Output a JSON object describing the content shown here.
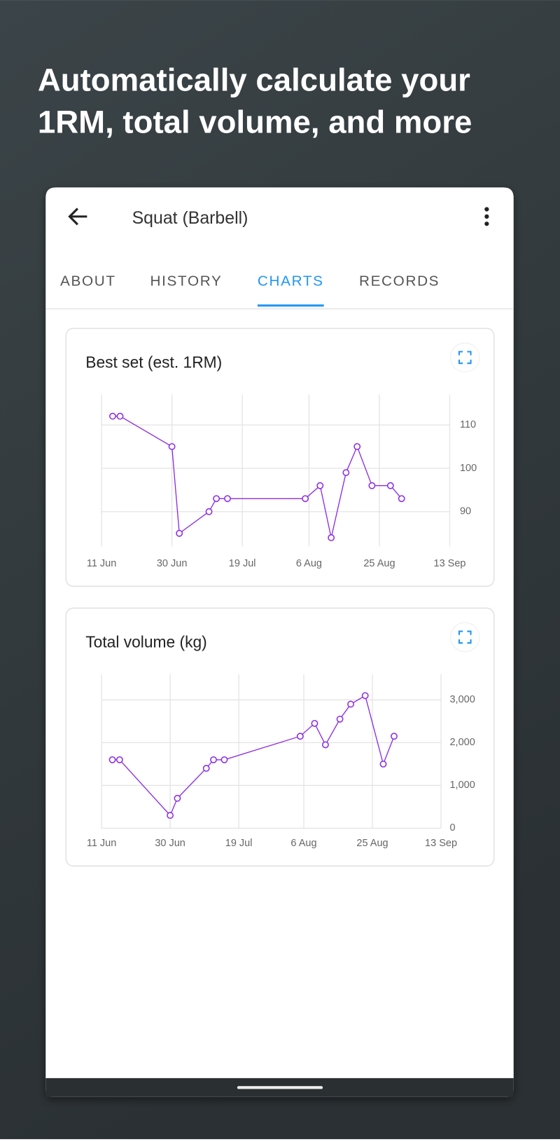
{
  "headline": [
    "Automatically calculate your",
    "1RM, total volume, and more"
  ],
  "app_bar": {
    "title": "Squat (Barbell)"
  },
  "tabs": [
    "ABOUT",
    "HISTORY",
    "CHARTS",
    "RECORDS"
  ],
  "active_tab": 2,
  "chart_data": [
    {
      "type": "line",
      "title": "Best set (est. 1RM)",
      "color": "#8e2de2",
      "grid": true,
      "x": [
        165,
        167,
        181,
        183,
        191,
        193,
        196,
        217,
        221,
        224,
        228,
        231,
        235,
        240,
        243
      ],
      "series": [
        {
          "name": "Best set (est. 1RM)",
          "color": "#8e2de2",
          "values": [
            112,
            112,
            105,
            85,
            90,
            93,
            93,
            93,
            96,
            84,
            99,
            105,
            96,
            96,
            93
          ]
        }
      ],
      "xlim": [
        162,
        256
      ],
      "xticks": [
        {
          "value": 162,
          "label": "11 Jun"
        },
        {
          "value": 181,
          "label": "30 Jun"
        },
        {
          "value": 200,
          "label": "19 Jul"
        },
        {
          "value": 218,
          "label": "6 Aug"
        },
        {
          "value": 237,
          "label": "25 Aug"
        },
        {
          "value": 256,
          "label": "13 Sep"
        }
      ],
      "ylim": [
        82,
        117
      ],
      "yticks": [
        90,
        100,
        110
      ]
    },
    {
      "type": "line",
      "title": "Total volume (kg)",
      "color": "#8e2de2",
      "grid": true,
      "x": [
        165,
        167,
        181,
        183,
        191,
        193,
        196,
        217,
        221,
        224,
        228,
        231,
        235,
        240,
        243
      ],
      "series": [
        {
          "name": "Total volume (kg)",
          "color": "#8e2de2",
          "values": [
            1600,
            1600,
            300,
            700,
            1400,
            1600,
            1600,
            2150,
            2450,
            1950,
            2550,
            2900,
            3100,
            1500,
            2150
          ]
        }
      ],
      "xlim": [
        162,
        256
      ],
      "xticks": [
        {
          "value": 162,
          "label": "11 Jun"
        },
        {
          "value": 181,
          "label": "30 Jun"
        },
        {
          "value": 200,
          "label": "19 Jul"
        },
        {
          "value": 218,
          "label": "6 Aug"
        },
        {
          "value": 237,
          "label": "25 Aug"
        },
        {
          "value": 256,
          "label": "13 Sep"
        }
      ],
      "ylim": [
        0,
        3600
      ],
      "yticks": [
        0,
        {
          "value": 1000,
          "label": "1,000"
        },
        {
          "value": 2000,
          "label": "2,000"
        },
        {
          "value": 3000,
          "label": "3,000"
        }
      ]
    }
  ]
}
